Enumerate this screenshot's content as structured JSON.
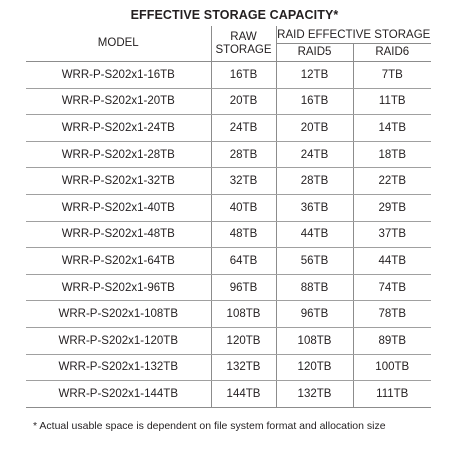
{
  "title": "EFFECTIVE STORAGE CAPACITY*",
  "headers": {
    "model": "MODEL",
    "raw_line1": "RAW",
    "raw_line2": "STORAGE",
    "raid_group": "RAID EFFECTIVE STORAGE",
    "raid5": "RAID5",
    "raid6": "RAID6"
  },
  "rows": [
    {
      "model": "WRR-P-S202x1-16TB",
      "raw": "16TB",
      "raid5": "12TB",
      "raid6": "7TB"
    },
    {
      "model": "WRR-P-S202x1-20TB",
      "raw": "20TB",
      "raid5": "16TB",
      "raid6": "11TB"
    },
    {
      "model": "WRR-P-S202x1-24TB",
      "raw": "24TB",
      "raid5": "20TB",
      "raid6": "14TB"
    },
    {
      "model": "WRR-P-S202x1-28TB",
      "raw": "28TB",
      "raid5": "24TB",
      "raid6": "18TB"
    },
    {
      "model": "WRR-P-S202x1-32TB",
      "raw": "32TB",
      "raid5": "28TB",
      "raid6": "22TB"
    },
    {
      "model": "WRR-P-S202x1-40TB",
      "raw": "40TB",
      "raid5": "36TB",
      "raid6": "29TB"
    },
    {
      "model": "WRR-P-S202x1-48TB",
      "raw": "48TB",
      "raid5": "44TB",
      "raid6": "37TB"
    },
    {
      "model": "WRR-P-S202x1-64TB",
      "raw": "64TB",
      "raid5": "56TB",
      "raid6": "44TB"
    },
    {
      "model": "WRR-P-S202x1-96TB",
      "raw": "96TB",
      "raid5": "88TB",
      "raid6": "74TB"
    },
    {
      "model": "WRR-P-S202x1-108TB",
      "raw": "108TB",
      "raid5": "96TB",
      "raid6": "78TB"
    },
    {
      "model": "WRR-P-S202x1-120TB",
      "raw": "120TB",
      "raid5": "108TB",
      "raid6": "89TB"
    },
    {
      "model": "WRR-P-S202x1-132TB",
      "raw": "132TB",
      "raid5": "120TB",
      "raid6": "100TB"
    },
    {
      "model": "WRR-P-S202x1-144TB",
      "raw": "144TB",
      "raid5": "132TB",
      "raid6": "111TB"
    }
  ],
  "footnote": "* Actual usable space is dependent on file system format and allocation size"
}
